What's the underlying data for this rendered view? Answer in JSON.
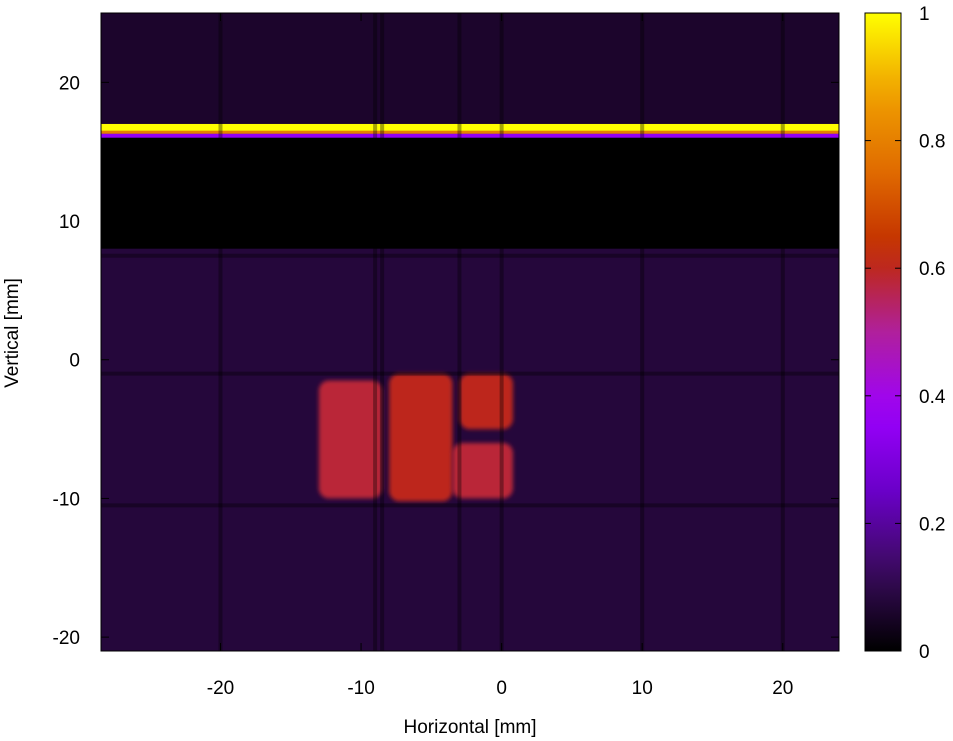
{
  "chart_data": {
    "type": "heatmap",
    "title": "",
    "xlabel": "Horizontal [mm]",
    "ylabel": "Vertical [mm]",
    "xlim": [
      -28.5,
      24
    ],
    "ylim": [
      -21,
      25
    ],
    "x_ticks": [
      -20,
      -10,
      0,
      10,
      20
    ],
    "x_tick_labels": [
      "-20",
      "-10",
      "0",
      "10",
      "20"
    ],
    "y_ticks": [
      -20,
      -10,
      0,
      10,
      20
    ],
    "y_tick_labels": [
      "-20",
      "-10",
      "0",
      "10",
      "20"
    ],
    "colorbar": {
      "min": 0,
      "max": 1,
      "ticks": [
        0,
        0.2,
        0.4,
        0.6,
        0.8,
        1
      ],
      "tick_labels": [
        "0",
        "0.2",
        "0.4",
        "0.6",
        "0.8",
        "1"
      ],
      "colormap": [
        "#000000",
        "#3a0b5c",
        "#6a00c8",
        "#9c00ff",
        "#b0209c",
        "#c02a00",
        "#e06a00",
        "#f0a000",
        "#ffff00"
      ]
    },
    "background_value": 0.06,
    "regions": [
      {
        "label": "dark band",
        "x": [
          -28.5,
          24
        ],
        "y": [
          8,
          16
        ],
        "value": 0.0
      },
      {
        "label": "bright stripe",
        "x": [
          -28.5,
          24
        ],
        "y": [
          16.3,
          17
        ],
        "value": 1.0
      },
      {
        "label": "lower block",
        "x": [
          -28.5,
          24
        ],
        "y": [
          -21,
          8
        ],
        "value": 0.08
      },
      {
        "label": "beam spot left",
        "x": [
          -13,
          -8.5
        ],
        "y": [
          -10,
          -1.5
        ],
        "value": 0.58
      },
      {
        "label": "beam spot center",
        "x": [
          -8,
          -3.5
        ],
        "y": [
          -10.2,
          -1
        ],
        "value": 0.6
      },
      {
        "label": "beam spot right",
        "x": [
          -3,
          0.8
        ],
        "y": [
          -5,
          -1
        ],
        "value": 0.6
      },
      {
        "label": "beam spot lower right",
        "x": [
          -3.5,
          0.8
        ],
        "y": [
          -10,
          -6
        ],
        "value": 0.58
      }
    ],
    "grid_lines_x": [
      -20,
      -9,
      -8.5,
      -3,
      0,
      10,
      20
    ],
    "grid_lines_y": [
      -10.5,
      -1,
      7.5
    ]
  }
}
